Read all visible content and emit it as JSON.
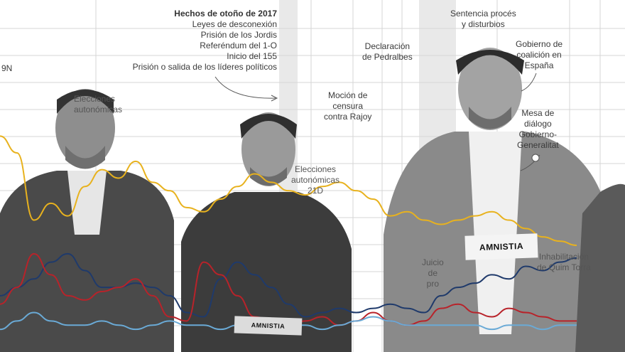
{
  "annotations": {
    "nine_n": "9N",
    "autumn_title": "Hechos de otoño de 2017",
    "autumn_lines": [
      "Leyes de desconexión",
      "Prisión de los Jordis",
      "Referéndum del 1-O",
      "Inicio del 155",
      "Prisión o salida de los líderes políticos"
    ],
    "elecciones_autonomicas": [
      "Elecciones",
      "autonómicas"
    ],
    "elecciones_21d": [
      "Elecciones",
      "autonómicas",
      "21D"
    ],
    "mocion": [
      "Moción de",
      "censura",
      "contra Rajoy"
    ],
    "pedralbes": [
      "Declaración",
      "de Pedralbes"
    ],
    "sentencia": [
      "Sentencia procés",
      "y disturbios"
    ],
    "gobierno_coalicion": [
      "Gobierno de",
      "coalición en",
      "España"
    ],
    "mesa_dialogo": [
      "Mesa de",
      "diálogo",
      "Gobierno-",
      "Generalitat"
    ],
    "juicio": [
      "Juicio",
      "de",
      "pro"
    ],
    "inhabilitacion": [
      "Inhabilitación",
      "de Quim Torra"
    ]
  },
  "signs": {
    "left": "AMNISTIA",
    "right": "AMNISTIA"
  },
  "colors": {
    "yellow": "#e8b21e",
    "blue": "#1f3a6b",
    "red": "#b8232a",
    "light_blue": "#6aaad6",
    "grid": "#d6d6d6",
    "band": "#ececec"
  },
  "chart_data": {
    "type": "line",
    "series": [
      {
        "color": "yellow",
        "values": [
          48,
          44,
          28,
          32,
          29,
          36,
          40,
          38,
          42,
          37,
          35,
          31,
          30,
          33,
          36,
          39,
          37,
          35,
          34,
          36,
          37,
          35,
          33,
          29,
          30,
          28,
          27,
          28,
          29,
          30,
          28,
          26,
          24,
          23,
          22
        ]
      },
      {
        "color": "blue",
        "values": [
          10,
          12,
          14,
          18,
          20,
          16,
          12,
          12,
          13,
          12,
          10,
          6,
          5,
          14,
          18,
          15,
          12,
          8,
          5,
          6,
          7,
          6,
          7,
          8,
          7,
          6,
          10,
          12,
          13,
          15,
          14,
          17,
          16,
          18,
          19
        ]
      },
      {
        "color": "red",
        "values": [
          8,
          12,
          20,
          15,
          10,
          9,
          11,
          12,
          14,
          10,
          5,
          4,
          18,
          15,
          10,
          5,
          4,
          3,
          4,
          5,
          3,
          4,
          6,
          4,
          3,
          4,
          7,
          8,
          6,
          5,
          7,
          6,
          5,
          4,
          4
        ]
      },
      {
        "color": "light_blue",
        "values": [
          2,
          4,
          6,
          4,
          3,
          3,
          4,
          3,
          2,
          3,
          4,
          3,
          3,
          2,
          3,
          2,
          2,
          3,
          3,
          2,
          3,
          4,
          5,
          4,
          3,
          3,
          3,
          3,
          3,
          2,
          3,
          3,
          2,
          3,
          3
        ]
      }
    ]
  }
}
